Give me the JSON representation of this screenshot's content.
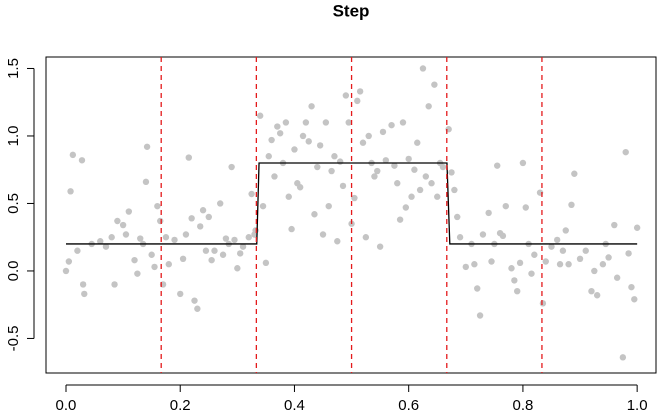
{
  "chart_data": {
    "type": "scatter",
    "title": "Step",
    "x": [
      0.0,
      0.005,
      0.008,
      0.012,
      0.02,
      0.028,
      0.03,
      0.032,
      0.045,
      0.06,
      0.07,
      0.08,
      0.085,
      0.09,
      0.1,
      0.105,
      0.11,
      0.12,
      0.125,
      0.13,
      0.135,
      0.14,
      0.142,
      0.15,
      0.155,
      0.16,
      0.165,
      0.17,
      0.175,
      0.18,
      0.19,
      0.2,
      0.205,
      0.21,
      0.215,
      0.22,
      0.225,
      0.23,
      0.235,
      0.24,
      0.245,
      0.25,
      0.255,
      0.26,
      0.27,
      0.275,
      0.28,
      0.285,
      0.29,
      0.295,
      0.3,
      0.305,
      0.31,
      0.32,
      0.325,
      0.33,
      0.332,
      0.34,
      0.345,
      0.35,
      0.355,
      0.36,
      0.365,
      0.37,
      0.375,
      0.38,
      0.385,
      0.39,
      0.395,
      0.4,
      0.405,
      0.41,
      0.415,
      0.42,
      0.425,
      0.43,
      0.435,
      0.44,
      0.445,
      0.45,
      0.455,
      0.46,
      0.465,
      0.47,
      0.475,
      0.48,
      0.485,
      0.49,
      0.495,
      0.5,
      0.505,
      0.51,
      0.515,
      0.52,
      0.525,
      0.53,
      0.535,
      0.54,
      0.545,
      0.55,
      0.555,
      0.56,
      0.57,
      0.575,
      0.58,
      0.585,
      0.59,
      0.595,
      0.6,
      0.605,
      0.61,
      0.615,
      0.62,
      0.625,
      0.63,
      0.635,
      0.64,
      0.645,
      0.65,
      0.655,
      0.66,
      0.67,
      0.675,
      0.68,
      0.685,
      0.69,
      0.7,
      0.71,
      0.715,
      0.72,
      0.725,
      0.73,
      0.74,
      0.745,
      0.75,
      0.755,
      0.76,
      0.765,
      0.77,
      0.78,
      0.785,
      0.79,
      0.795,
      0.8,
      0.805,
      0.81,
      0.815,
      0.82,
      0.83,
      0.835,
      0.84,
      0.85,
      0.86,
      0.865,
      0.87,
      0.875,
      0.88,
      0.885,
      0.89,
      0.9,
      0.91,
      0.92,
      0.925,
      0.93,
      0.94,
      0.945,
      0.95,
      0.96,
      0.965,
      0.975,
      0.98,
      0.985,
      0.99,
      0.995,
      1.0
    ],
    "y": [
      0.0,
      0.07,
      0.59,
      0.86,
      0.15,
      0.82,
      -0.1,
      -0.17,
      0.2,
      0.22,
      0.18,
      0.25,
      -0.1,
      0.37,
      0.34,
      0.27,
      0.44,
      0.08,
      -0.02,
      0.24,
      0.2,
      0.66,
      0.92,
      0.12,
      0.03,
      0.48,
      0.37,
      -0.1,
      0.25,
      0.05,
      0.23,
      -0.17,
      0.09,
      0.27,
      0.84,
      0.39,
      -0.22,
      -0.28,
      0.33,
      0.45,
      0.15,
      0.4,
      0.08,
      0.15,
      0.5,
      0.12,
      0.24,
      0.2,
      0.77,
      0.23,
      0.02,
      0.13,
      0.18,
      0.25,
      0.57,
      0.27,
      0.3,
      1.15,
      0.48,
      0.06,
      0.85,
      0.97,
      0.7,
      1.07,
      1.02,
      0.8,
      1.1,
      0.55,
      0.31,
      0.9,
      0.65,
      0.62,
      1.0,
      1.1,
      0.96,
      1.22,
      0.42,
      0.77,
      0.93,
      0.27,
      1.1,
      0.48,
      0.74,
      0.85,
      0.22,
      0.81,
      0.63,
      1.3,
      1.1,
      0.35,
      0.54,
      1.26,
      1.33,
      0.95,
      0.25,
      1.0,
      0.8,
      0.7,
      0.74,
      0.18,
      1.03,
      0.82,
      1.08,
      0.78,
      0.65,
      0.38,
      1.1,
      0.47,
      0.83,
      0.55,
      0.75,
      0.95,
      0.6,
      1.5,
      0.7,
      1.22,
      0.65,
      1.38,
      0.55,
      0.8,
      0.77,
      1.05,
      0.73,
      0.6,
      0.4,
      0.25,
      0.03,
      0.2,
      0.05,
      -0.13,
      -0.33,
      0.27,
      0.43,
      0.07,
      0.2,
      0.78,
      0.28,
      0.26,
      0.48,
      0.02,
      -0.07,
      -0.15,
      0.06,
      0.8,
      0.47,
      0.2,
      -0.02,
      0.12,
      0.58,
      -0.24,
      0.07,
      0.18,
      0.23,
      0.05,
      0.15,
      0.3,
      0.05,
      0.49,
      0.72,
      0.09,
      0.15,
      -0.15,
      0.0,
      -0.18,
      0.05,
      0.2,
      0.1,
      0.34,
      -0.05,
      -0.64,
      0.88,
      0.13,
      -0.12,
      -0.21,
      0.32
    ],
    "color": "#c4c4c4",
    "line": {
      "x": [
        0,
        0.334,
        0.338,
        0.667,
        0.672,
        1.0
      ],
      "y": [
        0.2,
        0.2,
        0.8,
        0.8,
        0.2,
        0.2
      ],
      "color": "#000000"
    },
    "vlines": {
      "x": [
        0.1667,
        0.3333,
        0.5,
        0.6667,
        0.8333
      ],
      "color": "#e41a1c"
    },
    "xlim": [
      -0.035,
      1.033
    ],
    "ylim": [
      -0.756,
      1.585
    ],
    "xticks": [
      {
        "value": 0,
        "label": "0.0"
      },
      0.2,
      0.4,
      0.6,
      0.8,
      {
        "value": 1,
        "label": "1.0"
      }
    ],
    "yticks": [
      -0.5,
      {
        "value": 0,
        "label": "0.0"
      },
      0.5,
      {
        "value": 1,
        "label": "1.0"
      },
      1.5
    ]
  }
}
